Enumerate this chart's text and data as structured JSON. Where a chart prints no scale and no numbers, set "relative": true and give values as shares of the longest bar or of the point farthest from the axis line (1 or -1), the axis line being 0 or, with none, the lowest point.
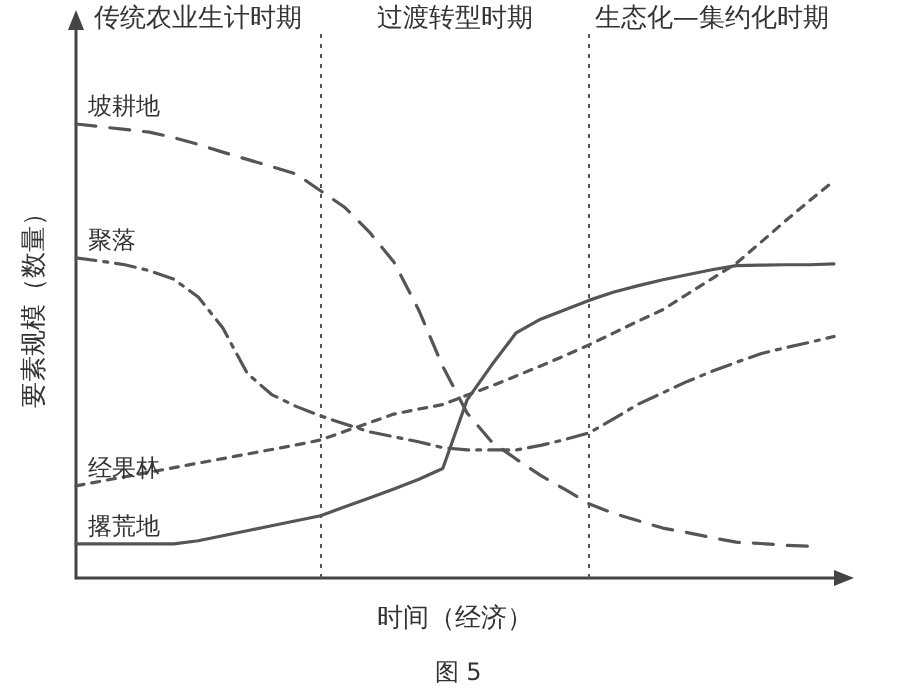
{
  "chart_data": {
    "type": "line",
    "relative": true,
    "xlabel": "时间（经济）",
    "ylabel": "要素规模（数量）",
    "annotations": [
      "传统农业生计时期",
      "过渡转型时期",
      "生态化—集约化时期",
      "图 5"
    ],
    "legend": false,
    "grid": false,
    "marker": "none",
    "categories": [
      null,
      null,
      null,
      null,
      null,
      null,
      null,
      null,
      null,
      null,
      null,
      null,
      null,
      null,
      null,
      null,
      null,
      null,
      null,
      null,
      null,
      null,
      null,
      null,
      null,
      null,
      null,
      null,
      null,
      null,
      null,
      null
    ],
    "series": [
      {
        "name": "坡耕地",
        "color": "#555555",
        "line_style": "dashed",
        "values": [
          1.0,
          0.994,
          0.988,
          0.982,
          0.97,
          0.955,
          0.938,
          0.922,
          0.906,
          0.89,
          0.853,
          0.816,
          0.762,
          0.696,
          0.592,
          0.466,
          0.363,
          0.3,
          0.262,
          0.226,
          0.195,
          0.163,
          0.142,
          0.126,
          0.11,
          0.1,
          0.089,
          0.079,
          0.076,
          0.072,
          0.07,
          null
        ]
      },
      {
        "name": "聚落",
        "color": "#555555",
        "line_style": "dashdot",
        "values": [
          0.705,
          0.698,
          0.69,
          0.677,
          0.658,
          0.619,
          0.551,
          0.451,
          0.404,
          0.378,
          0.357,
          0.339,
          0.322,
          0.311,
          0.3,
          0.287,
          0.282,
          0.282,
          0.282,
          0.292,
          0.305,
          0.32,
          0.351,
          0.383,
          0.408,
          0.433,
          0.455,
          0.475,
          0.494,
          0.507,
          0.519,
          0.532
        ]
      },
      {
        "name": "经果林",
        "color": "#555555",
        "line_style": "dotted",
        "values": [
          0.203,
          0.213,
          0.223,
          0.233,
          0.243,
          0.253,
          0.263,
          0.273,
          0.283,
          0.293,
          0.304,
          0.323,
          0.342,
          0.361,
          0.372,
          0.382,
          0.403,
          0.423,
          0.445,
          0.467,
          0.49,
          0.514,
          0.54,
          0.566,
          0.591,
          0.625,
          0.659,
          0.693,
          0.739,
          0.786,
          0.831,
          0.875
        ]
      },
      {
        "name": "撂荒地",
        "color": "#555555",
        "line_style": "solid",
        "values": [
          0.075,
          0.075,
          0.075,
          0.075,
          0.075,
          0.082,
          0.093,
          0.104,
          0.115,
          0.126,
          0.137,
          0.157,
          0.176,
          0.196,
          0.217,
          0.241,
          0.393,
          0.469,
          0.54,
          0.57,
          0.591,
          0.612,
          0.63,
          0.644,
          0.657,
          0.668,
          0.679,
          0.688,
          0.689,
          0.69,
          0.69,
          0.692
        ]
      }
    ]
  }
}
